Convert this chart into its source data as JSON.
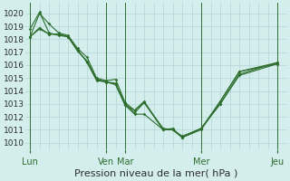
{
  "bg_color": "#d4eeee",
  "grid_color": "#b8d8d8",
  "line_color": "#2d6e2d",
  "axis_color": "#2d6e2d",
  "xlabel": "Pression niveau de la mer( hPa )",
  "ylim": [
    1009.5,
    1020.8
  ],
  "yticks": [
    1010,
    1011,
    1012,
    1013,
    1014,
    1015,
    1016,
    1017,
    1018,
    1019,
    1020
  ],
  "xtick_labels": [
    "Lun",
    "Ven",
    "Mar",
    "Mer",
    "Jeu"
  ],
  "xtick_positions": [
    0,
    8,
    10,
    18,
    26
  ],
  "vline_positions": [
    0,
    8,
    10,
    18,
    26
  ],
  "xlim": [
    -0.5,
    27
  ],
  "series": [
    {
      "x": [
        0,
        1,
        2,
        3,
        4,
        5,
        6,
        7,
        8,
        9,
        10,
        11,
        12,
        14,
        15,
        16,
        18,
        20,
        22,
        26
      ],
      "y": [
        1018.2,
        1020.0,
        1019.2,
        1018.5,
        1018.3,
        1017.3,
        1016.6,
        1015.0,
        1014.8,
        1014.9,
        1013.1,
        1012.5,
        1013.1,
        1011.0,
        1011.1,
        1010.4,
        1011.1,
        1013.2,
        1015.5,
        1016.2
      ]
    },
    {
      "x": [
        0,
        1,
        2,
        3,
        4,
        5,
        6,
        7,
        8,
        9,
        10,
        11,
        12,
        14,
        15,
        16,
        18,
        20,
        22,
        26
      ],
      "y": [
        1018.8,
        1020.1,
        1018.5,
        1018.3,
        1018.2,
        1017.2,
        1016.2,
        1014.8,
        1014.7,
        1014.6,
        1013.0,
        1012.3,
        1013.1,
        1011.1,
        1011.0,
        1010.4,
        1011.0,
        1013.2,
        1015.5,
        1016.1
      ]
    },
    {
      "x": [
        0,
        1,
        2,
        3,
        4,
        5,
        6,
        7,
        8,
        9,
        10,
        11,
        12,
        14,
        15,
        16,
        18,
        20,
        22,
        26
      ],
      "y": [
        1018.2,
        1018.8,
        1018.4,
        1018.4,
        1018.2,
        1017.1,
        1016.3,
        1014.9,
        1014.7,
        1014.5,
        1012.9,
        1012.2,
        1012.2,
        1011.0,
        1011.0,
        1010.4,
        1011.1,
        1013.0,
        1015.2,
        1016.1
      ]
    },
    {
      "x": [
        0,
        1,
        2,
        3,
        4,
        5,
        6,
        7,
        8,
        9,
        10,
        11,
        12,
        14,
        15,
        16,
        18,
        20,
        22,
        26
      ],
      "y": [
        1018.2,
        1018.9,
        1018.4,
        1018.4,
        1018.2,
        1017.1,
        1016.3,
        1014.9,
        1014.7,
        1014.5,
        1012.9,
        1012.5,
        1013.2,
        1011.0,
        1011.0,
        1010.5,
        1011.1,
        1013.0,
        1015.3,
        1016.2
      ]
    }
  ],
  "ytick_fontsize": 6.5,
  "xtick_fontsize": 7.0,
  "xlabel_fontsize": 8.0
}
